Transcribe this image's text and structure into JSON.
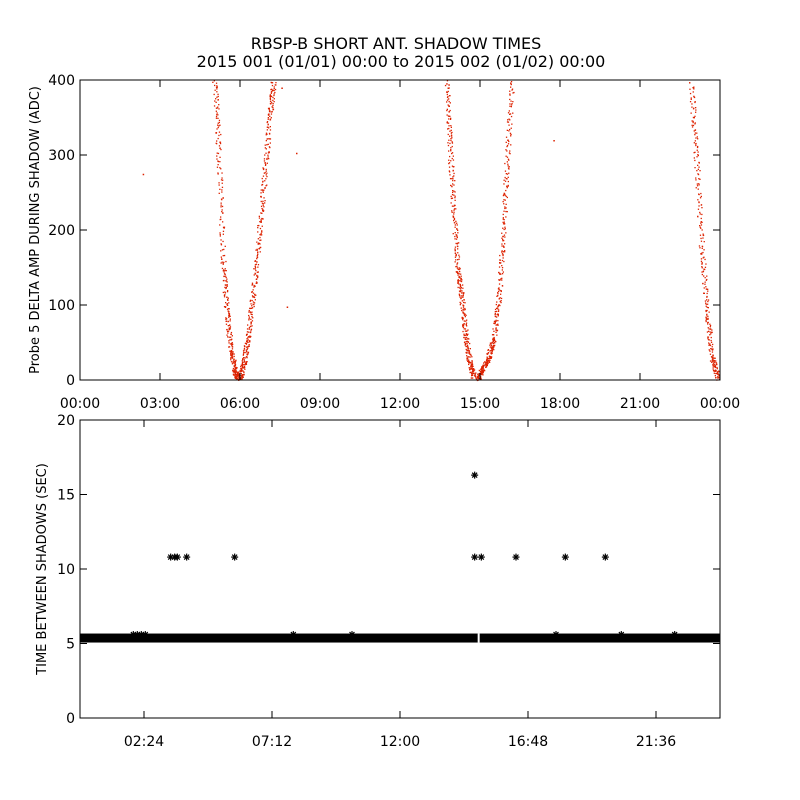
{
  "title_line1": "RBSP-B SHORT ANT. SHADOW TIMES",
  "title_line2": "2015 001 (01/01) 00:00 to 2015 002 (01/02) 00:00",
  "chart_data": [
    {
      "type": "scatter",
      "ylabel": "Probe 5 DELTA AMP DURING SHADOW (ADC)",
      "xlabel": "",
      "x_units": "hours",
      "xlim": [
        0,
        24
      ],
      "ylim": [
        0,
        400
      ],
      "x_tick_values": [
        0,
        3,
        6,
        9,
        12,
        15,
        18,
        21,
        24
      ],
      "x_tick_labels": [
        "00:00",
        "03:00",
        "06:00",
        "09:00",
        "12:00",
        "15:00",
        "18:00",
        "21:00",
        "00:00"
      ],
      "y_tick_values": [
        0,
        100,
        200,
        300,
        400
      ],
      "y_tick_labels": [
        "0",
        "100",
        "200",
        "300",
        "400"
      ],
      "marker_color": "#dd2200",
      "grid": false,
      "curves": [
        {
          "x": [
            5.05,
            5.2,
            5.35,
            5.5,
            5.65,
            5.8,
            5.9
          ],
          "y": [
            400,
            300,
            160,
            90,
            40,
            12,
            2
          ]
        },
        {
          "x": [
            6.0,
            6.15,
            6.3,
            6.5,
            6.7,
            6.9,
            7.1,
            7.25
          ],
          "y": [
            3,
            25,
            60,
            120,
            190,
            270,
            350,
            400
          ]
        },
        {
          "x": [
            13.75,
            13.85,
            14.0,
            14.15,
            14.3,
            14.45,
            14.6,
            14.75
          ],
          "y": [
            400,
            320,
            230,
            150,
            110,
            60,
            25,
            5
          ]
        },
        {
          "x": [
            14.9,
            15.1,
            15.3,
            15.5,
            15.7,
            15.85,
            16.0,
            16.2
          ],
          "y": [
            2,
            15,
            30,
            55,
            110,
            190,
            290,
            400
          ]
        },
        {
          "x": [
            22.9,
            23.1,
            23.3,
            23.5,
            23.7,
            23.9
          ],
          "y": [
            400,
            300,
            180,
            90,
            30,
            2
          ]
        }
      ],
      "outliers": [
        {
          "x": 2.35,
          "y": 275
        },
        {
          "x": 7.75,
          "y": 98
        },
        {
          "x": 8.1,
          "y": 303
        },
        {
          "x": 7.55,
          "y": 390
        },
        {
          "x": 17.75,
          "y": 320
        },
        {
          "x": 14.05,
          "y": 170
        }
      ]
    },
    {
      "type": "scatter",
      "ylabel": "TIME BETWEEN SHADOWS (SEC)",
      "xlabel": "",
      "x_units": "hours",
      "xlim": [
        0,
        24
      ],
      "ylim": [
        0,
        20
      ],
      "x_tick_values": [
        2.4,
        7.2,
        12.0,
        16.8,
        21.6
      ],
      "x_tick_labels": [
        "02:24",
        "07:12",
        "12:00",
        "16:48",
        "21:36"
      ],
      "y_tick_values": [
        0,
        5,
        10,
        15,
        20
      ],
      "y_tick_labels": [
        "0",
        "5",
        "10",
        "15",
        "20"
      ],
      "marker": "asterisk",
      "marker_color": "#000000",
      "grid": false,
      "band": {
        "x_start": 0,
        "x_end": 24,
        "y": 5.4
      },
      "band_gaps": [
        14.95
      ],
      "points": [
        {
          "x": 2.0,
          "y": 5.6
        },
        {
          "x": 2.15,
          "y": 5.6
        },
        {
          "x": 2.3,
          "y": 5.6
        },
        {
          "x": 2.45,
          "y": 5.6
        },
        {
          "x": 3.4,
          "y": 10.8
        },
        {
          "x": 3.55,
          "y": 10.8
        },
        {
          "x": 3.65,
          "y": 10.8
        },
        {
          "x": 4.0,
          "y": 10.8
        },
        {
          "x": 5.8,
          "y": 10.8
        },
        {
          "x": 8.0,
          "y": 5.6
        },
        {
          "x": 10.2,
          "y": 5.6
        },
        {
          "x": 14.8,
          "y": 16.3
        },
        {
          "x": 14.8,
          "y": 10.8
        },
        {
          "x": 15.05,
          "y": 10.8
        },
        {
          "x": 16.35,
          "y": 10.8
        },
        {
          "x": 17.85,
          "y": 5.6
        },
        {
          "x": 18.2,
          "y": 10.8
        },
        {
          "x": 19.7,
          "y": 10.8
        },
        {
          "x": 20.3,
          "y": 5.6
        },
        {
          "x": 22.3,
          "y": 5.6
        }
      ]
    }
  ]
}
